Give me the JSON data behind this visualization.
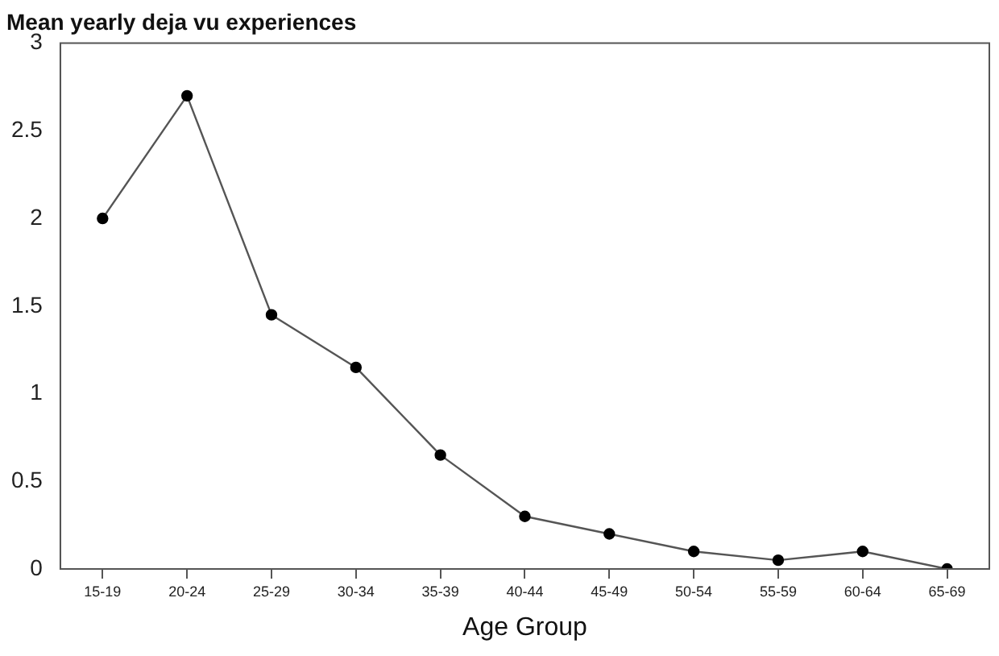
{
  "chart_data": {
    "type": "line",
    "title": "Mean yearly deja vu experiences",
    "xlabel": "Age Group",
    "categories": [
      "15-19",
      "20-24",
      "25-29",
      "30-34",
      "35-39",
      "40-44",
      "45-49",
      "50-54",
      "55-59",
      "60-64",
      "65-69"
    ],
    "series": [
      {
        "color": "#000000",
        "values": [
          2.0,
          2.7,
          1.45,
          1.15,
          0.65,
          0.3,
          0.2,
          0.1,
          0.05,
          0.1,
          0.0
        ]
      }
    ],
    "ylim": [
      0,
      3
    ],
    "yticks": [
      0,
      0.5,
      1,
      1.5,
      2,
      2.5,
      3
    ],
    "marker": "circle",
    "line_style": "solid",
    "legend": false
  }
}
